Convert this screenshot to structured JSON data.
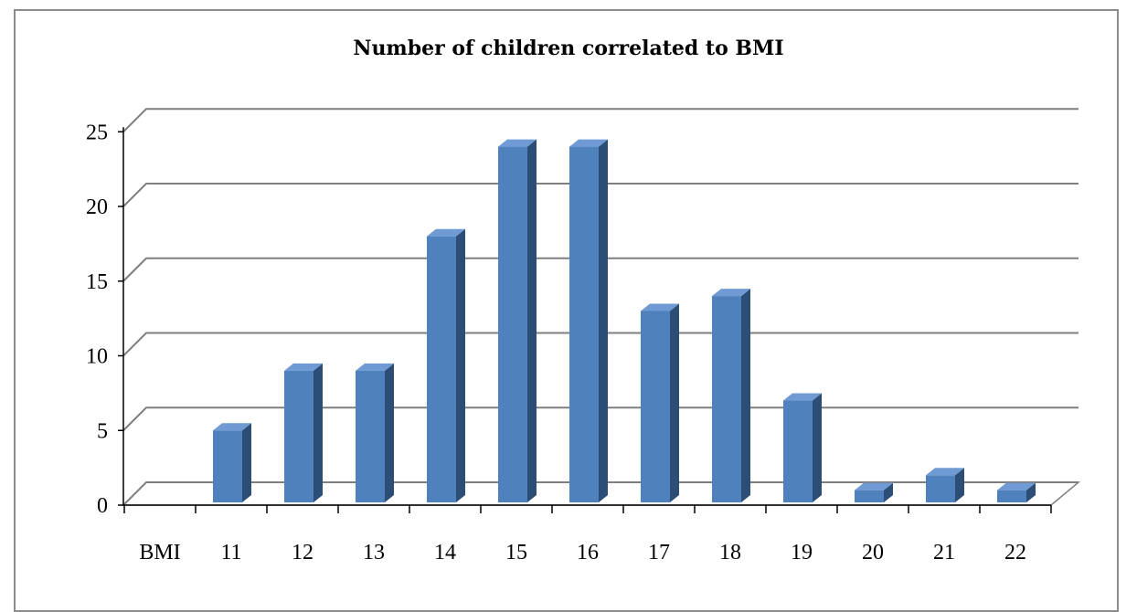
{
  "chart_data": {
    "type": "bar",
    "title": "Number of children correlated to BMI",
    "x_axis_first_label": "BMI",
    "categories": [
      "11",
      "12",
      "13",
      "14",
      "15",
      "16",
      "17",
      "18",
      "19",
      "20",
      "21",
      "22"
    ],
    "values": [
      5,
      9,
      9,
      18,
      24,
      24,
      13,
      14,
      7,
      1,
      2,
      1
    ],
    "yticks": [
      0,
      5,
      10,
      15,
      20,
      25
    ],
    "ylim": [
      0,
      25
    ],
    "grid": true,
    "legend": "none",
    "style": "3d-column",
    "colors": {
      "front": "#4f81bd",
      "side": "#2c4d75",
      "top": "#6f9ad3"
    }
  }
}
